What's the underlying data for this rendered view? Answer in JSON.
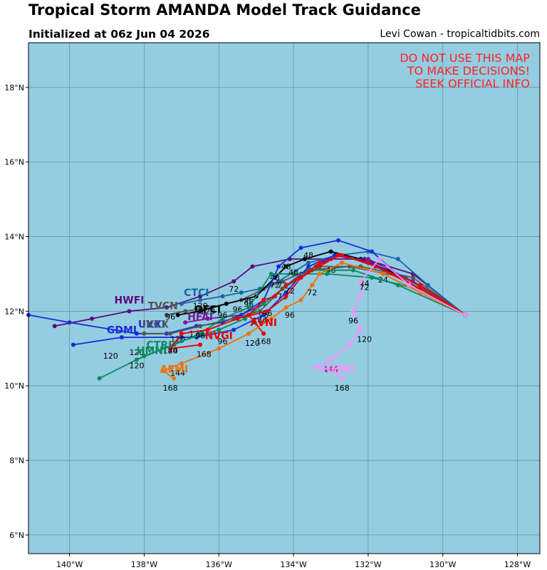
{
  "header": {
    "title": "Tropical Storm AMANDA Model Track Guidance",
    "subtitle": "Initialized at 06z Jun 04 2026",
    "credit": "Levi Cowan - tropicaltidbits.com"
  },
  "chart_data": {
    "type": "line",
    "xlim": [
      -141.1,
      -127.4
    ],
    "ylim": [
      5.5,
      19.2
    ],
    "grid": true,
    "background": "#94cde2",
    "grid_color": "#5e8b9c",
    "xticks": [
      {
        "value": -140,
        "label": "140°W"
      },
      {
        "value": -138,
        "label": "138°W"
      },
      {
        "value": -136,
        "label": "136°W"
      },
      {
        "value": -134,
        "label": "134°W"
      },
      {
        "value": -132,
        "label": "132°W"
      },
      {
        "value": -130,
        "label": "130°W"
      },
      {
        "value": -128,
        "label": "128°W"
      }
    ],
    "yticks": [
      {
        "value": 6,
        "label": "6°N"
      },
      {
        "value": 8,
        "label": "8°N"
      },
      {
        "value": 10,
        "label": "10°N"
      },
      {
        "value": 12,
        "label": "12°N"
      },
      {
        "value": 14,
        "label": "14°N"
      },
      {
        "value": 16,
        "label": "16°N"
      },
      {
        "value": 18,
        "label": "18°N"
      }
    ],
    "warning": [
      "DO NOT USE THIS MAP",
      "TO MAKE DECISIONS!",
      "SEEK OFFICIAL INFO"
    ],
    "warning_color": "#ff2222",
    "series": [
      {
        "name": "HWFI",
        "color": "#5c0a80",
        "points": [
          [
            -129.4,
            11.9
          ],
          [
            -130.8,
            13.0
          ],
          [
            -132.1,
            13.4
          ],
          [
            -134.1,
            13.4
          ],
          [
            -135.1,
            13.2
          ],
          [
            -135.6,
            12.8
          ],
          [
            -136.5,
            12.4
          ],
          [
            -137.4,
            12.1
          ],
          [
            -138.4,
            12.0
          ],
          [
            -139.4,
            11.8
          ],
          [
            -140.4,
            11.6
          ]
        ],
        "tags": [],
        "label": {
          "text": "HWFI",
          "at": [
            -138.4,
            12.3
          ]
        }
      },
      {
        "name": "CTCI",
        "color": "#1566a4",
        "points": [
          [
            -129.4,
            11.9
          ],
          [
            -130.4,
            12.7
          ],
          [
            -131.2,
            13.4
          ],
          [
            -132.0,
            13.6
          ],
          [
            -132.8,
            13.5
          ],
          [
            -133.6,
            13.3
          ],
          [
            -134.4,
            12.8
          ],
          [
            -134.9,
            12.6
          ],
          [
            -135.4,
            12.5
          ],
          [
            -135.9,
            12.4
          ],
          [
            -136.5,
            12.3
          ],
          [
            -137.0,
            12.2
          ]
        ],
        "tags": [
          [
            -135.6,
            12.6,
            "72"
          ],
          [
            -135.2,
            12.3,
            "96"
          ],
          [
            -136.3,
            12.0,
            "120"
          ]
        ],
        "label": {
          "text": "CTCI",
          "at": [
            -136.6,
            12.5
          ]
        }
      },
      {
        "name": "TVCN",
        "color": "#555555",
        "points": [
          [
            -129.4,
            11.9
          ],
          [
            -130.8,
            12.9
          ],
          [
            -132.2,
            13.2
          ],
          [
            -133.4,
            13.2
          ],
          [
            -134.3,
            12.8
          ],
          [
            -134.8,
            12.6
          ],
          [
            -135.4,
            12.3
          ],
          [
            -136.2,
            12.1
          ],
          [
            -136.9,
            12.0
          ],
          [
            -137.4,
            11.9
          ]
        ],
        "tags": [
          [
            -134.5,
            12.7,
            "72"
          ],
          [
            -135.2,
            12.2,
            "96"
          ],
          [
            -137.3,
            11.85,
            "96"
          ]
        ],
        "label": {
          "text": "TVCN",
          "at": [
            -137.5,
            12.15
          ]
        }
      },
      {
        "name": "OFCI",
        "color": "#000000",
        "points": [
          [
            -129.4,
            11.9
          ],
          [
            -131.0,
            12.9
          ],
          [
            -132.2,
            13.4
          ],
          [
            -133.0,
            13.6
          ],
          [
            -133.7,
            13.4
          ],
          [
            -134.2,
            13.2
          ],
          [
            -134.5,
            12.9
          ],
          [
            -135.0,
            12.4
          ],
          [
            -135.8,
            12.2
          ],
          [
            -136.5,
            12.0
          ],
          [
            -137.1,
            11.9
          ]
        ],
        "tags": [
          [
            -133.6,
            13.5,
            "48"
          ],
          [
            -134.2,
            13.2,
            "48"
          ],
          [
            -134.5,
            12.9,
            "48"
          ],
          [
            -135.5,
            12.05,
            "96"
          ],
          [
            -136.5,
            12.15,
            "120"
          ]
        ],
        "label": {
          "text": "OFCI",
          "at": [
            -136.3,
            12.05
          ]
        }
      },
      {
        "name": "HFAI",
        "color": "#7a1a9a",
        "points": [
          [
            -129.4,
            11.9
          ],
          [
            -130.8,
            12.8
          ],
          [
            -132.0,
            13.4
          ],
          [
            -133.0,
            13.4
          ],
          [
            -133.8,
            13.0
          ],
          [
            -134.3,
            12.6
          ],
          [
            -134.8,
            12.2
          ],
          [
            -135.4,
            11.9
          ],
          [
            -136.3,
            11.8
          ],
          [
            -136.9,
            11.7
          ]
        ],
        "tags": [
          [
            -134.3,
            12.4,
            "72"
          ],
          [
            -134.8,
            11.9,
            "96"
          ]
        ],
        "label": {
          "text": "HFAI",
          "at": [
            -136.5,
            11.85
          ]
        }
      },
      {
        "name": "UKXI",
        "color": "#1a2ad6",
        "points": [
          [
            -129.4,
            11.9
          ],
          [
            -130.9,
            12.7
          ],
          [
            -131.9,
            13.6
          ],
          [
            -132.8,
            13.9
          ],
          [
            -133.8,
            13.7
          ],
          [
            -134.4,
            13.2
          ],
          [
            -134.8,
            12.3
          ],
          [
            -135.4,
            11.9
          ],
          [
            -135.9,
            11.7
          ],
          [
            -136.6,
            11.6
          ],
          [
            -137.4,
            11.4
          ],
          [
            -138.2,
            11.4
          ],
          [
            -140.0,
            11.7
          ],
          [
            -141.1,
            11.9
          ]
        ],
        "tags": [
          [
            -134.3,
            12.7,
            "72"
          ],
          [
            -136.6,
            11.4,
            "120"
          ]
        ],
        "label": {
          "text": "UKXI",
          "at": [
            -137.8,
            11.65
          ]
        }
      },
      {
        "name": "GDMI",
        "color": "#1a2ad6",
        "points": [
          [
            -129.4,
            11.9
          ],
          [
            -130.6,
            12.6
          ],
          [
            -131.9,
            13.3
          ],
          [
            -132.9,
            13.5
          ],
          [
            -133.6,
            13.2
          ],
          [
            -134.2,
            12.5
          ],
          [
            -134.8,
            11.9
          ],
          [
            -135.6,
            11.5
          ],
          [
            -136.6,
            11.3
          ],
          [
            -137.0,
            11.3
          ],
          [
            -138.6,
            11.3
          ],
          [
            -139.9,
            11.1
          ]
        ],
        "tags": [
          [
            -138.2,
            10.9,
            "120"
          ],
          [
            -138.9,
            10.8,
            "120"
          ]
        ],
        "label": {
          "text": "GDMI",
          "at": [
            -138.6,
            11.5
          ]
        }
      },
      {
        "name": "IVCX",
        "color": "#555555",
        "points": [
          [
            -129.4,
            11.9
          ],
          [
            -131.0,
            12.9
          ],
          [
            -132.5,
            13.2
          ],
          [
            -133.6,
            13.1
          ],
          [
            -134.3,
            12.6
          ],
          [
            -134.9,
            12.0
          ],
          [
            -135.6,
            11.8
          ],
          [
            -136.5,
            11.6
          ],
          [
            -137.3,
            11.4
          ],
          [
            -138.0,
            11.4
          ]
        ],
        "tags": [
          [
            -135.9,
            11.2,
            "96"
          ],
          [
            -137.1,
            11.25,
            "120"
          ]
        ],
        "label": {
          "text": "IVCX",
          "at": [
            -137.7,
            11.65
          ]
        }
      },
      {
        "name": "HMNI",
        "color": "#0a8a5c",
        "points": [
          [
            -129.4,
            11.9
          ],
          [
            -130.7,
            12.6
          ],
          [
            -131.9,
            12.9
          ],
          [
            -133.1,
            13.0
          ],
          [
            -134.0,
            13.0
          ],
          [
            -134.6,
            13.0
          ],
          [
            -135.2,
            12.1
          ],
          [
            -135.9,
            11.8
          ],
          [
            -136.5,
            11.4
          ],
          [
            -137.2,
            11.1
          ],
          [
            -138.0,
            10.8
          ],
          [
            -139.2,
            10.2
          ]
        ],
        "tags": [
          [
            -131.6,
            12.85,
            "24"
          ],
          [
            -132.1,
            12.75,
            "24"
          ],
          [
            -133.0,
            13.1,
            "48"
          ],
          [
            -137.3,
            10.95,
            "120"
          ],
          [
            -138.2,
            10.55,
            "120"
          ]
        ],
        "label": {
          "text": "HMNI",
          "at": [
            -137.8,
            10.95
          ]
        }
      },
      {
        "name": "CTRI",
        "color": "#0a8a5c",
        "points": [
          [
            -129.4,
            11.9
          ],
          [
            -131.2,
            12.7
          ],
          [
            -132.4,
            13.1
          ],
          [
            -133.5,
            13.1
          ],
          [
            -134.3,
            12.6
          ],
          [
            -134.8,
            12.2
          ],
          [
            -135.3,
            11.8
          ],
          [
            -136.0,
            11.5
          ],
          [
            -137.0,
            11.2
          ],
          [
            -138.2,
            10.7
          ]
        ],
        "tags": [
          [
            -134.0,
            13.05,
            "48"
          ],
          [
            -135.9,
            11.9,
            "96"
          ]
        ],
        "label": {
          "text": "CTRI",
          "at": [
            -137.6,
            11.1
          ]
        }
      },
      {
        "name": "AVNI",
        "color": "#e80000",
        "points": [
          [
            -129.4,
            11.9
          ],
          [
            -130.6,
            12.6
          ],
          [
            -132.0,
            13.3
          ],
          [
            -132.8,
            13.5
          ],
          [
            -133.3,
            13.2
          ],
          [
            -133.8,
            12.9
          ],
          [
            -134.2,
            12.7
          ],
          [
            -134.5,
            12.4
          ],
          [
            -134.8,
            12.3
          ],
          [
            -135.2,
            11.9
          ],
          [
            -134.8,
            11.4
          ]
        ],
        "tags": [
          [
            -134.7,
            11.95,
            "96"
          ],
          [
            -134.9,
            11.75,
            "144"
          ],
          [
            -134.8,
            11.2,
            "168"
          ]
        ],
        "label": {
          "text": "AVNI",
          "at": [
            -134.8,
            11.7
          ]
        }
      },
      {
        "name": "AEMI",
        "color": "#f07000",
        "points": [
          [
            -129.4,
            11.9
          ],
          [
            -130.6,
            12.5
          ],
          [
            -131.6,
            13.0
          ],
          [
            -132.7,
            13.3
          ],
          [
            -133.3,
            13.0
          ],
          [
            -133.5,
            12.7
          ],
          [
            -133.8,
            12.3
          ],
          [
            -134.2,
            12.1
          ],
          [
            -134.6,
            11.8
          ],
          [
            -135.2,
            11.4
          ],
          [
            -136.0,
            11.0
          ],
          [
            -137.0,
            10.6
          ],
          [
            -137.5,
            10.4
          ],
          [
            -137.2,
            10.2
          ]
        ],
        "tags": [
          [
            -133.5,
            12.5,
            "72"
          ],
          [
            -134.1,
            11.9,
            "96"
          ],
          [
            -135.1,
            11.15,
            "120"
          ],
          [
            -136.4,
            10.85,
            "168"
          ],
          [
            -137.1,
            10.35,
            "144"
          ],
          [
            -137.3,
            9.95,
            "168"
          ]
        ],
        "label": {
          "text": "AEMI",
          "at": [
            -137.2,
            10.45
          ]
        }
      },
      {
        "name": "NVGI",
        "color": "#e80000",
        "points": [
          [
            -129.4,
            11.9
          ],
          [
            -130.6,
            12.7
          ],
          [
            -131.8,
            13.2
          ],
          [
            -132.7,
            13.5
          ],
          [
            -133.3,
            13.3
          ],
          [
            -133.8,
            12.9
          ],
          [
            -134.2,
            12.4
          ],
          [
            -134.7,
            12.0
          ],
          [
            -135.5,
            11.8
          ],
          [
            -136.3,
            11.5
          ],
          [
            -137.0,
            11.4
          ],
          [
            -137.3,
            11.0
          ],
          [
            -136.5,
            11.1
          ]
        ],
        "tags": [
          [
            -134.1,
            12.55,
            "72"
          ],
          [
            -136.5,
            11.35,
            "96"
          ],
          [
            -137.3,
            10.95,
            "144"
          ]
        ],
        "label": {
          "text": "NVGI",
          "at": [
            -136.0,
            11.35
          ]
        }
      },
      {
        "name": "HMMI",
        "color": "#ff8cff",
        "points": [
          [
            -129.4,
            11.9
          ],
          [
            -130.9,
            12.7
          ],
          [
            -131.7,
            13.4
          ],
          [
            -132.2,
            12.8
          ],
          [
            -132.2,
            12.4
          ],
          [
            -132.4,
            12.0
          ],
          [
            -132.2,
            11.5
          ],
          [
            -132.5,
            11.1
          ],
          [
            -133.0,
            10.7
          ],
          [
            -133.4,
            10.5
          ],
          [
            -132.9,
            10.4
          ],
          [
            -132.7,
            10.2
          ]
        ],
        "tags": [
          [
            -132.1,
            12.65,
            "72"
          ],
          [
            -132.4,
            11.75,
            "96"
          ],
          [
            -132.1,
            11.25,
            "120"
          ],
          [
            -133.0,
            10.45,
            "144"
          ],
          [
            -132.7,
            9.95,
            "168"
          ]
        ],
        "label": {
          "text": "HMMI",
          "at": [
            -132.8,
            10.45
          ]
        }
      }
    ]
  }
}
